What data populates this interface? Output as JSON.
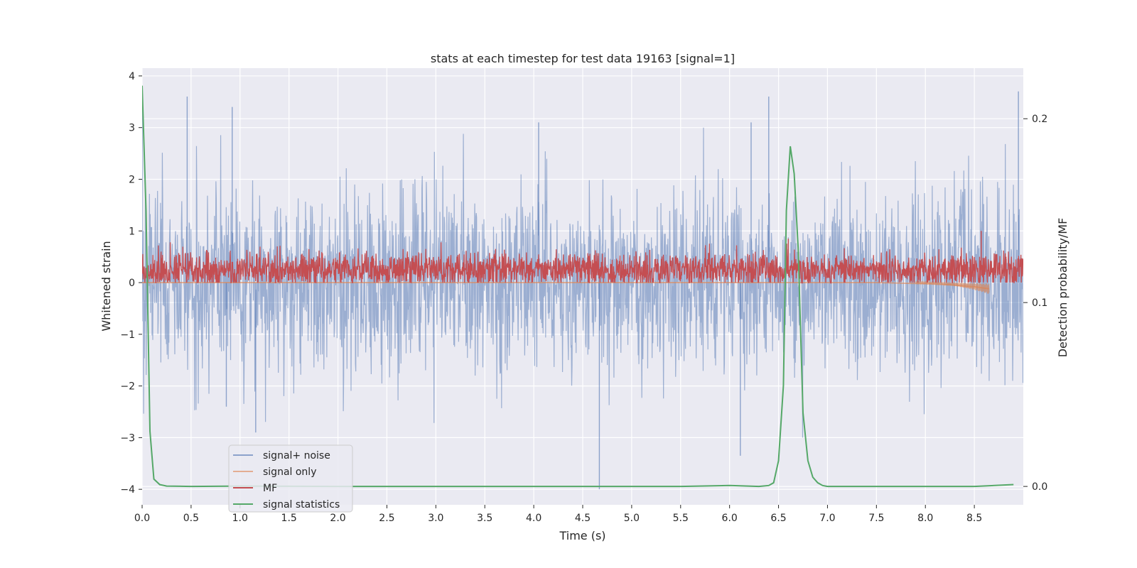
{
  "chart_data": {
    "type": "line",
    "title": "stats at each timestep for test data 19163 [signal=1]",
    "xlabel": "Time (s)",
    "ylabel": "Whitened strain",
    "y2label": "Detection probability/MF",
    "xlim": [
      0.0,
      9.0
    ],
    "ylim": [
      -4.3,
      4.15
    ],
    "y2lim": [
      -0.01,
      0.2275
    ],
    "xticks": [
      "0.0",
      "0.5",
      "1.0",
      "1.5",
      "2.0",
      "2.5",
      "3.0",
      "3.5",
      "4.0",
      "4.5",
      "5.0",
      "5.5",
      "6.0",
      "6.5",
      "7.0",
      "7.5",
      "8.0",
      "8.5"
    ],
    "yticks": [
      "4",
      "3",
      "2",
      "1",
      "0",
      "−1",
      "−2",
      "−3",
      "−4"
    ],
    "y2ticks": [
      "0.2",
      "0.1",
      "0.0"
    ],
    "grid": true,
    "legend_position": "lower-left",
    "series": [
      {
        "name": "signal+ noise",
        "color": "#4c72b0",
        "axis": "left",
        "approx_std": 0.9,
        "x_range": [
          0.0,
          9.0
        ],
        "notable_peaks": [
          [
            0.0,
            3.7
          ],
          [
            0.46,
            3.6
          ],
          [
            0.92,
            3.4
          ],
          [
            4.05,
            3.1
          ],
          [
            6.22,
            3.1
          ],
          [
            6.4,
            3.6
          ],
          [
            8.95,
            3.7
          ],
          [
            4.67,
            -4.0
          ],
          [
            6.11,
            -3.35
          ],
          [
            1.16,
            -2.9
          ],
          [
            0.86,
            -2.4
          ]
        ]
      },
      {
        "name": "signal only",
        "color": "#dd8452",
        "axis": "left",
        "x": [
          0.0,
          1.0,
          2.0,
          3.0,
          4.0,
          5.0,
          6.0,
          6.5,
          7.0,
          7.5,
          8.0,
          8.3,
          8.5,
          8.65
        ],
        "y": [
          0.0,
          0.0,
          0.0,
          0.0,
          0.0,
          0.0,
          0.0,
          0.0,
          0.0,
          0.0,
          -0.02,
          -0.05,
          -0.08,
          -0.12
        ]
      },
      {
        "name": "MF",
        "color": "#c44e52",
        "axis": "left",
        "baseline": 0.25,
        "x_range": [
          0.0,
          9.0
        ],
        "notable_peaks": [
          [
            8.57,
            1.0
          ],
          [
            6.6,
            0.85
          ]
        ]
      },
      {
        "name": "signal statistics",
        "color": "#55a868",
        "axis": "right",
        "x": [
          0.0,
          0.04,
          0.08,
          0.12,
          0.18,
          0.25,
          0.5,
          1.0,
          2.0,
          3.0,
          4.0,
          5.0,
          5.5,
          6.0,
          6.3,
          6.4,
          6.45,
          6.5,
          6.55,
          6.58,
          6.62,
          6.66,
          6.7,
          6.75,
          6.8,
          6.85,
          6.9,
          6.95,
          7.0,
          7.5,
          8.0,
          8.5,
          8.9
        ],
        "y": [
          0.218,
          0.15,
          0.03,
          0.004,
          0.001,
          0.0002,
          0.0,
          0.0002,
          0.0,
          0.0,
          0.0,
          0.0,
          0.0,
          0.0005,
          0.0,
          0.0005,
          0.002,
          0.014,
          0.055,
          0.15,
          0.185,
          0.17,
          0.13,
          0.04,
          0.014,
          0.005,
          0.002,
          0.0005,
          0.0,
          0.0,
          0.0,
          0.0,
          0.001
        ]
      }
    ]
  }
}
